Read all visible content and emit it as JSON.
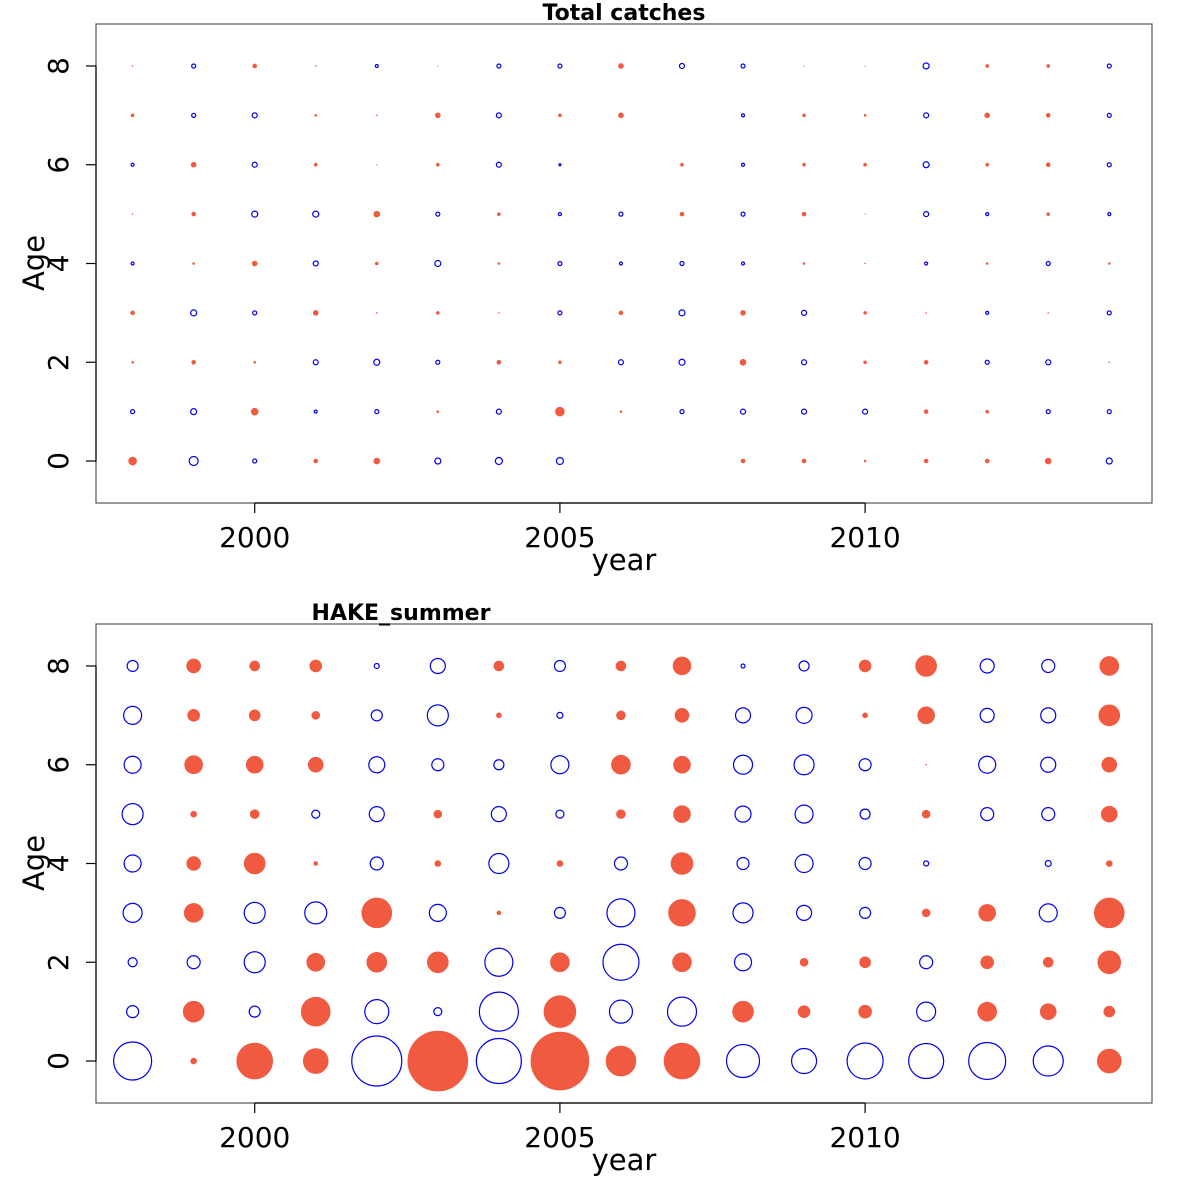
{
  "chart_data": [
    {
      "type": "scatter",
      "subtype": "bubble",
      "title": "Total catches",
      "xlabel": "year",
      "ylabel": "Age",
      "xlim": [
        1997.4,
        2014.7
      ],
      "ylim": [
        -0.85,
        8.85
      ],
      "xticks": [
        2000,
        2005,
        2010
      ],
      "yticks": [
        0,
        2,
        4,
        6,
        8
      ],
      "grid": false,
      "legend": "none",
      "colors": {
        "positive": "#ef5a41",
        "negative": "#0000ee"
      },
      "encoding": "filled red = positive residual, open blue = negative residual; radius proportional to magnitude",
      "years": [
        1998,
        1999,
        2000,
        2001,
        2002,
        2003,
        2004,
        2005,
        2006,
        2007,
        2008,
        2009,
        2010,
        2011,
        2012,
        2013,
        2014
      ],
      "ages": [
        0,
        1,
        2,
        3,
        4,
        5,
        6,
        7,
        8
      ],
      "values": [
        [
          4,
          -4.5,
          -2,
          2,
          3,
          -3,
          -3.5,
          -3.5,
          0,
          0,
          2,
          2,
          1,
          2,
          2,
          3,
          -3
        ],
        [
          -2,
          -3,
          3.5,
          -1.5,
          -2,
          1,
          -2.5,
          4.5,
          1,
          -2,
          -2.5,
          -2.5,
          -2.5,
          2,
          1.5,
          -2,
          -2
        ],
        [
          1,
          2,
          1,
          -2.5,
          -3,
          -2,
          2,
          1.5,
          -2.5,
          -3,
          3,
          -2.5,
          1.5,
          2,
          -2,
          -2.5,
          0.5
        ],
        [
          2,
          -3,
          -2,
          2.5,
          0.5,
          1.5,
          0.5,
          -2,
          2,
          -3,
          2.5,
          -2.5,
          1.5,
          0.5,
          -1.5,
          0.5,
          -2
        ],
        [
          -1.5,
          1,
          2.5,
          -2.5,
          1.5,
          -3,
          1,
          -2,
          -1.5,
          -2,
          -1.5,
          1,
          0.5,
          -1.5,
          1,
          -2,
          1
        ],
        [
          0.5,
          2,
          -3,
          -3,
          3,
          -2,
          1.5,
          -1.5,
          -2,
          2,
          -2,
          2,
          0.3,
          -2.5,
          -1.5,
          1.5,
          -1.5
        ],
        [
          -1.5,
          2.5,
          -2.5,
          1.5,
          0.3,
          1.5,
          -2.5,
          -1,
          0,
          1.5,
          -1.5,
          1.5,
          1.5,
          -3,
          1.5,
          2,
          -2
        ],
        [
          1.5,
          -2,
          -2.5,
          1,
          0.5,
          2.5,
          -2.5,
          1.5,
          2.5,
          0,
          -1.5,
          1.5,
          1,
          -2.5,
          2.5,
          2,
          -2
        ],
        [
          0.5,
          -2,
          2,
          0.5,
          -1.5,
          0.3,
          -2,
          -2,
          2.5,
          -2.5,
          -2,
          0.3,
          0.3,
          -3,
          1.5,
          1.5,
          -2
        ]
      ]
    },
    {
      "type": "scatter",
      "subtype": "bubble",
      "title": "HAKE_summer",
      "xlabel": "year",
      "ylabel": "Age",
      "xlim": [
        1997.4,
        2014.7
      ],
      "ylim": [
        -0.85,
        8.85
      ],
      "xticks": [
        2000,
        2005,
        2010
      ],
      "yticks": [
        0,
        2,
        4,
        6,
        8
      ],
      "grid": false,
      "legend": "none",
      "colors": {
        "positive": "#ef5a41",
        "negative": "#0000ee"
      },
      "encoding": "filled red = positive residual, open blue = negative residual; radius proportional to magnitude",
      "years": [
        1998,
        1999,
        2000,
        2001,
        2002,
        2003,
        2004,
        2005,
        2006,
        2007,
        2008,
        2009,
        2010,
        2011,
        2012,
        2013,
        2014
      ],
      "ages": [
        0,
        1,
        2,
        3,
        4,
        5,
        6,
        7,
        8
      ],
      "values": [
        [
          -19,
          3,
          18,
          12.5,
          -25,
          30,
          -22.5,
          29,
          15,
          18,
          -16.5,
          -12.5,
          -18,
          -17.5,
          -18.5,
          -15,
          12
        ],
        [
          -6,
          10.5,
          -5.5,
          14.5,
          -12,
          -4,
          -19.5,
          16,
          -11.5,
          -14.5,
          10.5,
          6,
          6.5,
          -9.5,
          9.5,
          8,
          5.5
        ],
        [
          -4.5,
          -6.5,
          -10.5,
          9,
          10,
          10.5,
          -14,
          9.5,
          -18,
          9.5,
          -8.5,
          4,
          5.5,
          -6.5,
          6.5,
          5,
          11.5
        ],
        [
          -9.5,
          9.5,
          -10.5,
          -11,
          15,
          -8.5,
          2,
          -5.5,
          -14,
          13.5,
          -10,
          -7.5,
          -5.5,
          4,
          8.5,
          -9,
          15
        ],
        [
          -8.5,
          7,
          10.5,
          2,
          -6.5,
          3,
          -10,
          3,
          -6.5,
          11,
          -6,
          -9,
          -6,
          -2.5,
          0,
          -3,
          3
        ],
        [
          -10.5,
          3,
          4.5,
          -4,
          -7.5,
          4,
          -7.5,
          -4,
          4.5,
          8.5,
          -8,
          -9,
          -5,
          4,
          -6.5,
          -6.5,
          8
        ],
        [
          -8.5,
          9,
          8.5,
          7.5,
          -8,
          -6,
          -5,
          -9,
          9.5,
          8.5,
          -9.5,
          -10,
          -6,
          0.5,
          -8.5,
          -7.5,
          7.5
        ],
        [
          -9,
          6,
          5.5,
          4,
          -5.5,
          -10.5,
          2.5,
          -3,
          4.5,
          7,
          -7.5,
          -8,
          2.5,
          8.5,
          -7,
          -7.5,
          10.5
        ],
        [
          -5.5,
          7,
          5,
          6,
          -2.5,
          -7.5,
          5,
          -5.5,
          5,
          9,
          -2,
          -5,
          6,
          10.5,
          -7,
          -6.5,
          9.5
        ]
      ]
    }
  ]
}
